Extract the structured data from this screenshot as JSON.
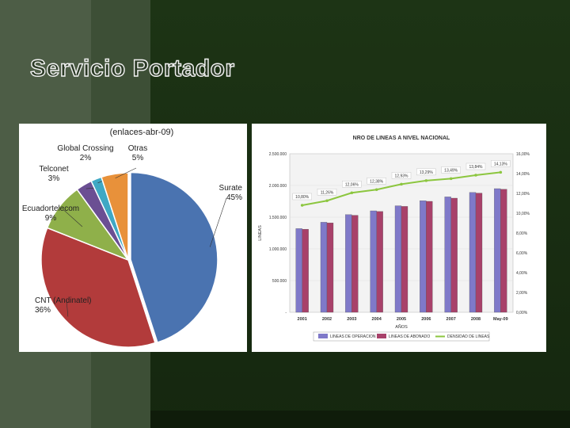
{
  "slide": {
    "title": "Servicio Portador"
  },
  "chart_data": [
    {
      "type": "pie",
      "title": "(enlaces-abr-09)",
      "slices": [
        {
          "label": "Surate",
          "value": 45,
          "display": "45%",
          "color": "#4a73b0"
        },
        {
          "label": "CNT (Andinatel)",
          "value": 36,
          "display": "36%",
          "color": "#b23b3b"
        },
        {
          "label": "Ecuadortelecom",
          "value": 9,
          "display": "9%",
          "color": "#8fb04a"
        },
        {
          "label": "Telconet",
          "value": 3,
          "display": "3%",
          "color": "#6b4f93"
        },
        {
          "label": "Global Crossing",
          "value": 2,
          "display": "2%",
          "color": "#3fa8c4"
        },
        {
          "label": "Otras",
          "value": 5,
          "display": "5%",
          "color": "#e8913a"
        }
      ]
    },
    {
      "type": "bar",
      "title": "NRO DE LINEAS A NIVEL NACIONAL",
      "xlabel": "AÑOS",
      "ylabel": "LINEAS",
      "categories": [
        "2001",
        "2002",
        "2003",
        "2004",
        "2005",
        "2006",
        "2007",
        "2008",
        "May-09"
      ],
      "ylim": [
        0,
        2500000
      ],
      "y_ticks": [
        "-",
        "500.000",
        "1.000.000",
        "1.500.000",
        "2.000.000",
        "2.500.000"
      ],
      "y2lim": [
        0,
        16
      ],
      "y2_ticks": [
        "0,00%",
        "2,00%",
        "4,00%",
        "6,00%",
        "8,00%",
        "10,00%",
        "12,00%",
        "14,00%",
        "16,00%"
      ],
      "series": [
        {
          "name": "LINEAS DE OPERACION",
          "color": "#7f79c9",
          "values": [
            1320000,
            1420000,
            1540000,
            1600000,
            1680000,
            1760000,
            1820000,
            1890000,
            1950000
          ]
        },
        {
          "name": "LINEAS DE ABONADO",
          "color": "#a8416a",
          "values": [
            1310000,
            1410000,
            1530000,
            1590000,
            1670000,
            1750000,
            1800000,
            1880000,
            1940000
          ]
        },
        {
          "name": "DENSIDAD DE LINEAS",
          "color": "#8cc63f",
          "type": "line",
          "axis": "secondary",
          "values": [
            10.8,
            11.26,
            12.06,
            12.38,
            12.93,
            13.29,
            13.49,
            13.84,
            14.13
          ],
          "labels": [
            "10,80%",
            "11,26%",
            "12,06%",
            "12,38%",
            "12,93%",
            "13,29%",
            "13,49%",
            "13,84%",
            "14,13%"
          ]
        }
      ],
      "legend": "bottom"
    }
  ]
}
